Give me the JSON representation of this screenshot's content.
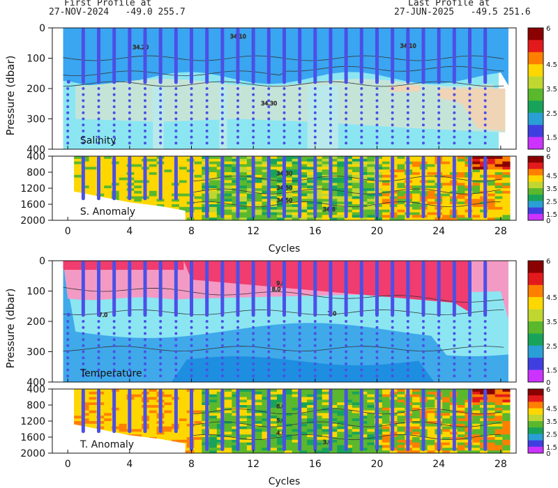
{
  "header": {
    "first_title": "First Profile at",
    "first_info": "27-NOV-2024   -49.0 255.7",
    "last_title": "Last Profile at",
    "last_info": "27-JUN-2025   -49.5 251.6"
  },
  "colorbar": {
    "ticks": [
      "6",
      "4.5",
      "3.5",
      "2.5",
      "1.5",
      "0"
    ],
    "colors": [
      "#8b0000",
      "#e31a1c",
      "#ff7f00",
      "#ffd700",
      "#bfd730",
      "#5ab82d",
      "#18a35a",
      "#2a9fd6",
      "#3f3fe0",
      "#cc33ff"
    ]
  },
  "chart_data": [
    {
      "type": "heatmap",
      "panel": "salinity",
      "label": "Salinity",
      "ylabel": "Pressure (dbar)",
      "ylim": [
        400,
        0
      ],
      "yticks": [
        0,
        100,
        200,
        300,
        400
      ],
      "xlim": [
        -1,
        29
      ],
      "contour_labels": [
        "34.10",
        "34.20",
        "34.10",
        "34.30"
      ],
      "colors": {
        "upper": "#3aa5f0",
        "mid": "#c5e4d8",
        "deep_left": "#b9e9ea",
        "right": "#efd4b5",
        "band": "#8be6f2"
      }
    },
    {
      "type": "heatmap",
      "panel": "salinity_anomaly",
      "label": "S. Anomaly",
      "ylim": [
        2000,
        400
      ],
      "yticks": [
        400,
        800,
        1200,
        1600,
        2000
      ],
      "xlim": [
        -1,
        29
      ],
      "contour_labels": [
        "34.30",
        "34.50",
        "34.50",
        "34.6"
      ]
    },
    {
      "type": "heatmap",
      "panel": "temperature",
      "label": "Temperature",
      "ylabel": "Pressure (dbar)",
      "ylim": [
        400,
        0
      ],
      "yticks": [
        0,
        100,
        200,
        300,
        400
      ],
      "xlim": [
        -1,
        29
      ],
      "contour_labels": [
        "9.0",
        "8.0",
        "7.0",
        "7.0"
      ],
      "colors": {
        "top": "#f03c6e",
        "upper": "#f39ac4",
        "light": "#8be6f2",
        "mid": "#3fa9ea",
        "deep": "#1e8ee0"
      }
    },
    {
      "type": "heatmap",
      "panel": "temperature_anomaly",
      "label": "T. Anomaly",
      "xlabel": "Cycles",
      "ylim": [
        2000,
        400
      ],
      "yticks": [
        400,
        800,
        1200,
        1600,
        2000
      ],
      "xlim": [
        -1,
        29
      ],
      "xticks": [
        0,
        4,
        8,
        12,
        16,
        20,
        24,
        28
      ],
      "contour_labels": [
        "6.0",
        "5.0",
        "4.0",
        "3.0"
      ]
    }
  ],
  "profiles": {
    "cycles": [
      0,
      1,
      2,
      3,
      4,
      5,
      6,
      7,
      8,
      9,
      10,
      11,
      12,
      13,
      14,
      15,
      16,
      17,
      18,
      19,
      20,
      21,
      22,
      23,
      24,
      25,
      26,
      27
    ],
    "dot_color": "#4b50e6"
  },
  "x_axis_label": "Cycles"
}
